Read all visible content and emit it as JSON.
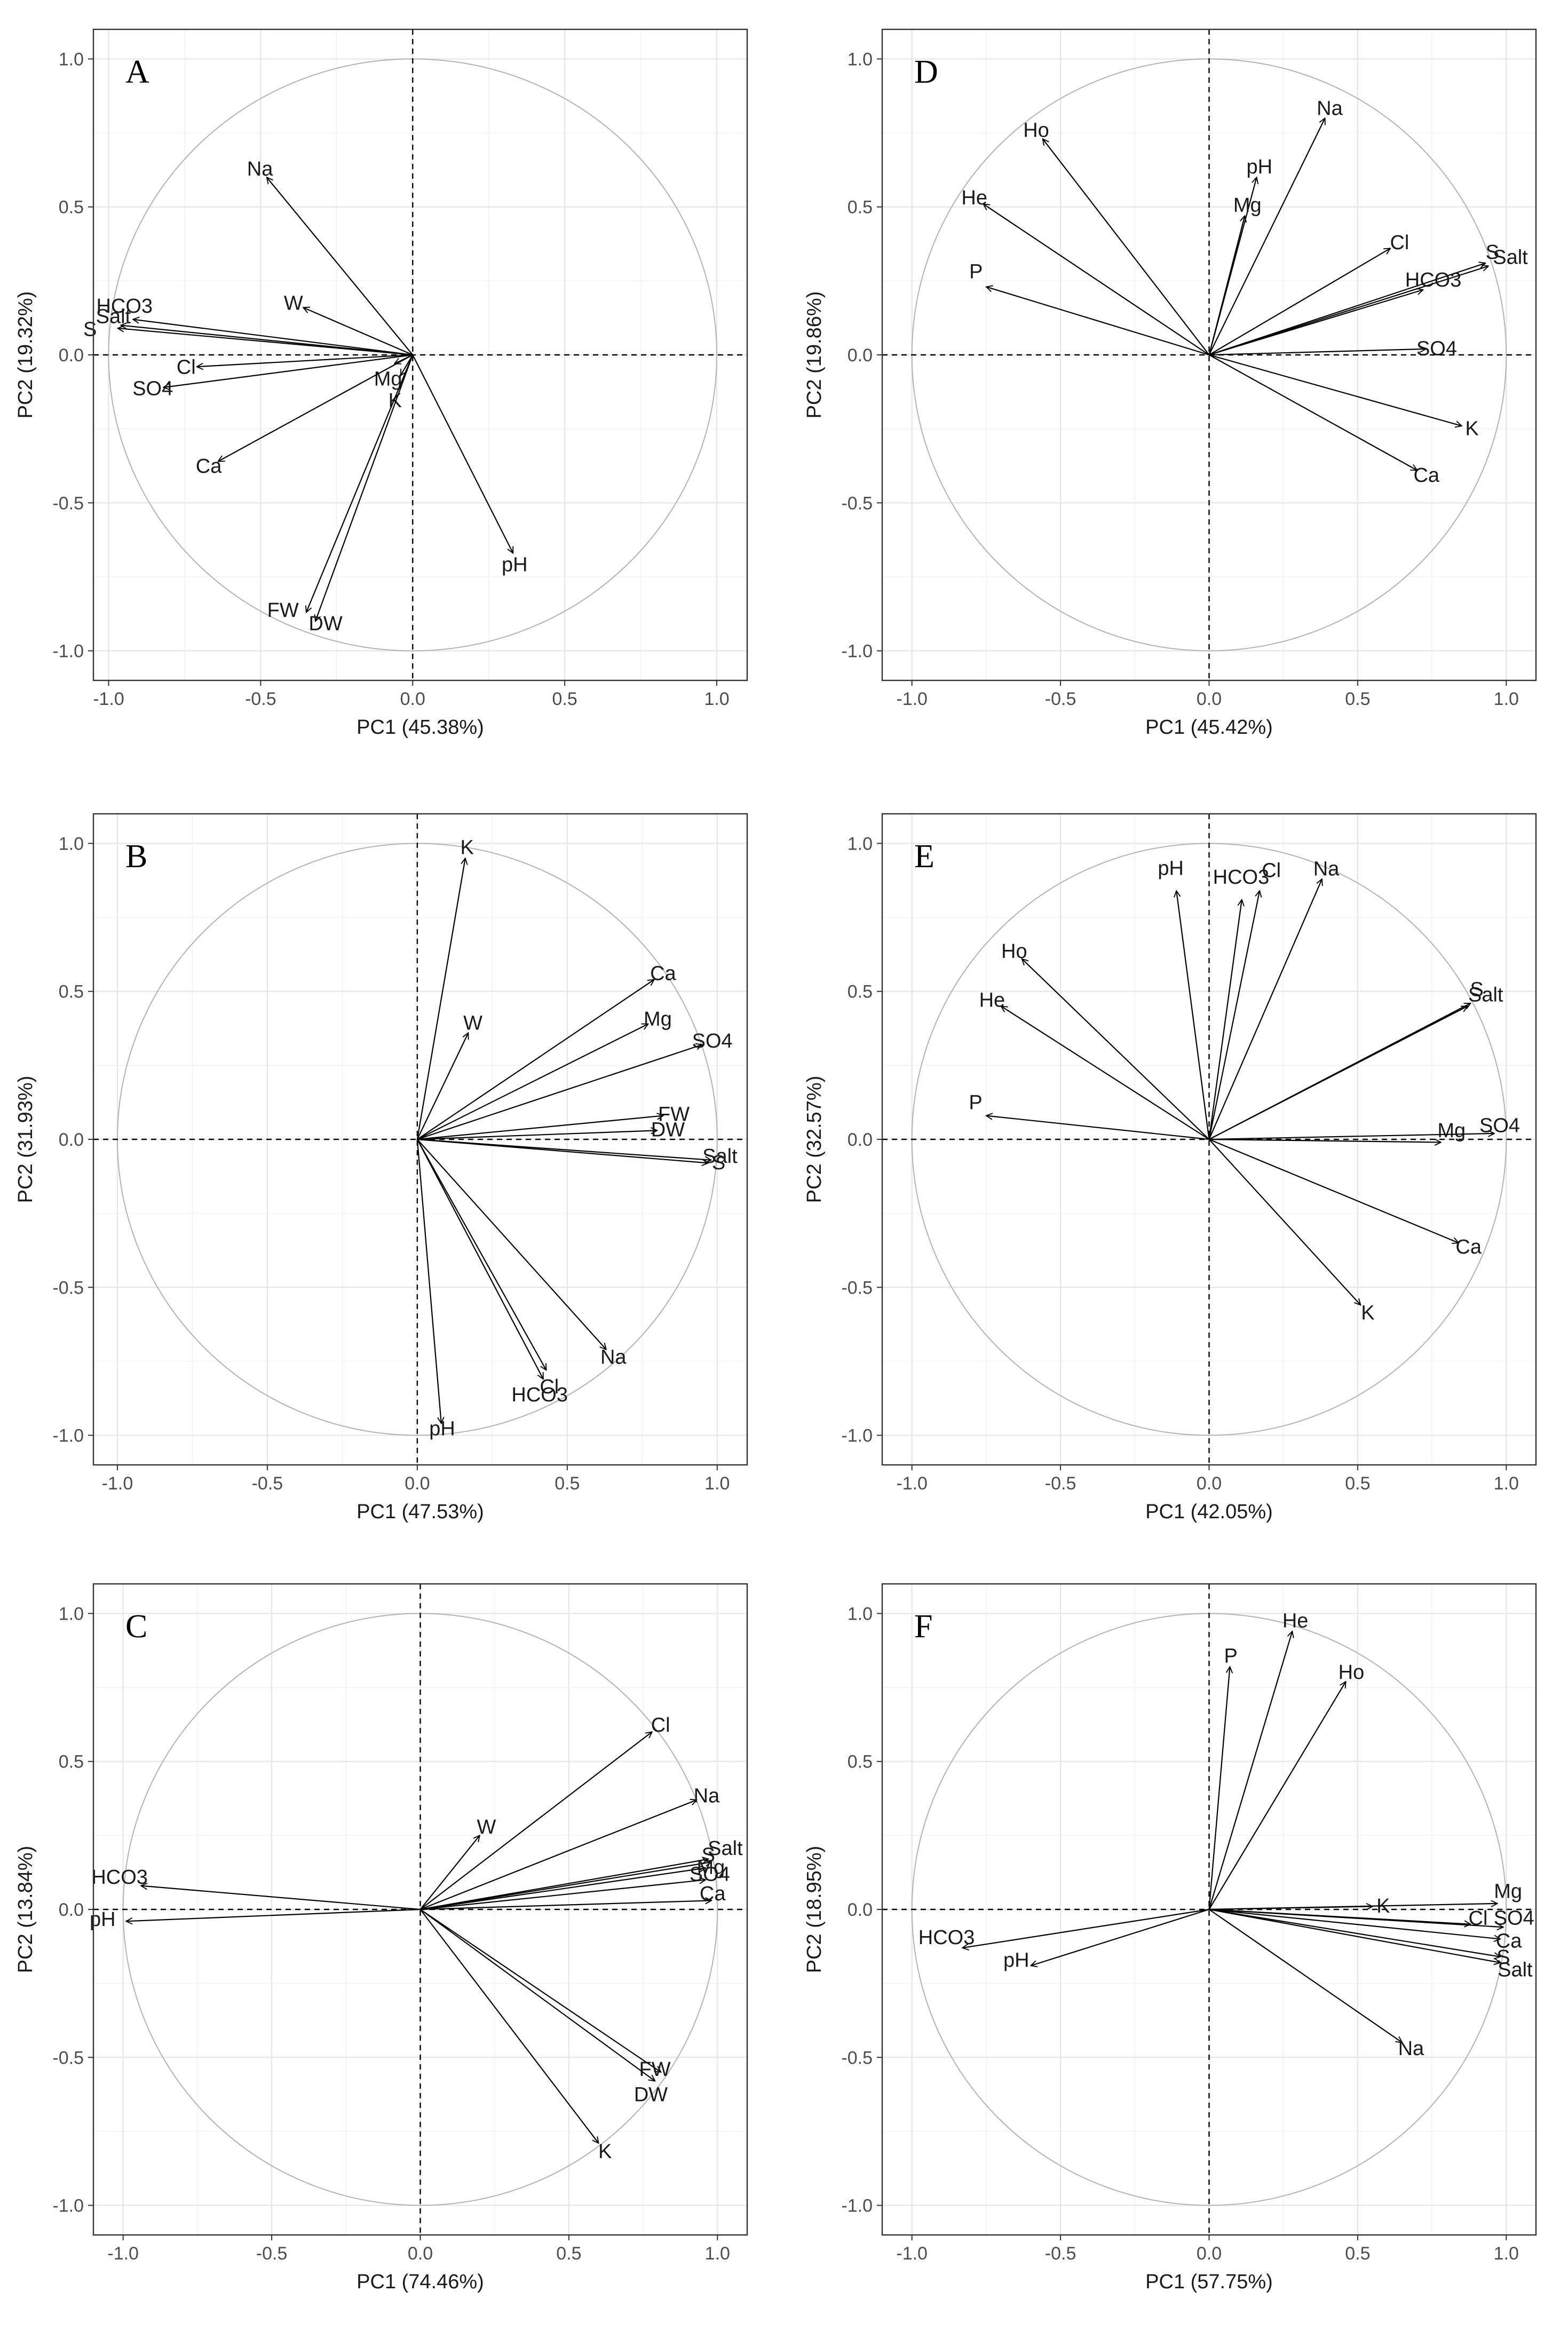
{
  "figure": {
    "colors": {
      "grid_major": "#e6e6e6",
      "grid_minor": "#f2f2f2",
      "frame": "#333333",
      "circle": "#b3b3b3",
      "arrow": "#000000"
    }
  },
  "chart_data": [
    {
      "type": "biplot",
      "panel": "A",
      "xlabel": "PC1 (45.38%)",
      "ylabel": "PC2 (19.32%)",
      "xlim": [
        -1.05,
        1.1
      ],
      "ylim": [
        -1.1,
        1.1
      ],
      "xticks": [
        -1.0,
        -0.5,
        0.0,
        0.5,
        1.0
      ],
      "xtick_labels": [
        "-1.0",
        "-0.5",
        "0.0",
        "0.5",
        "1.0"
      ],
      "yticks": [
        -1.0,
        -0.5,
        0.0,
        0.5,
        1.0
      ],
      "ytick_labels": [
        "-1.0",
        "-0.5",
        "0.0",
        "0.5",
        "1.0"
      ],
      "vectors": [
        {
          "name": "Na",
          "x": -0.48,
          "y": 0.6
        },
        {
          "name": "W",
          "x": -0.36,
          "y": 0.16
        },
        {
          "name": "HCO3",
          "x": -0.92,
          "y": 0.12
        },
        {
          "name": "Salt",
          "x": -0.96,
          "y": 0.1
        },
        {
          "name": "S",
          "x": -0.97,
          "y": 0.09
        },
        {
          "name": "Cl",
          "x": -0.71,
          "y": -0.04
        },
        {
          "name": "SO4",
          "x": -0.82,
          "y": -0.11
        },
        {
          "name": "Mg",
          "x": -0.06,
          "y": -0.03
        },
        {
          "name": "K",
          "x": -0.04,
          "y": -0.07
        },
        {
          "name": "Ca",
          "x": -0.64,
          "y": -0.36
        },
        {
          "name": "FW",
          "x": -0.35,
          "y": -0.87
        },
        {
          "name": "DW",
          "x": -0.32,
          "y": -0.9
        },
        {
          "name": "pH",
          "x": 0.33,
          "y": -0.67
        }
      ]
    },
    {
      "type": "biplot",
      "panel": "D",
      "xlabel": "PC1 (45.42%)",
      "ylabel": "PC2 (19.86%)",
      "xlim": [
        -1.1,
        1.1
      ],
      "ylim": [
        -1.1,
        1.1
      ],
      "xticks": [
        -1.0,
        -0.5,
        0.0,
        0.5,
        1.0
      ],
      "xtick_labels": [
        "-1.0",
        "-0.5",
        "0.0",
        "0.5",
        "1.0"
      ],
      "yticks": [
        -1.0,
        -0.5,
        0.0,
        0.5,
        1.0
      ],
      "ytick_labels": [
        "-1.0",
        "-0.5",
        "0.0",
        "0.5",
        "1.0"
      ],
      "vectors": [
        {
          "name": "Ho",
          "x": -0.56,
          "y": 0.73
        },
        {
          "name": "Na",
          "x": 0.39,
          "y": 0.8
        },
        {
          "name": "pH",
          "x": 0.16,
          "y": 0.6
        },
        {
          "name": "Mg",
          "x": 0.12,
          "y": 0.47
        },
        {
          "name": "He",
          "x": -0.76,
          "y": 0.51
        },
        {
          "name": "Cl",
          "x": 0.61,
          "y": 0.36
        },
        {
          "name": "S",
          "x": 0.93,
          "y": 0.31
        },
        {
          "name": "Salt",
          "x": 0.94,
          "y": 0.3
        },
        {
          "name": "HCO3",
          "x": 0.72,
          "y": 0.22
        },
        {
          "name": "P",
          "x": -0.75,
          "y": 0.23
        },
        {
          "name": "SO4",
          "x": 0.73,
          "y": 0.02
        },
        {
          "name": "K",
          "x": 0.85,
          "y": -0.24
        },
        {
          "name": "Ca",
          "x": 0.7,
          "y": -0.39
        }
      ]
    },
    {
      "type": "biplot",
      "panel": "B",
      "xlabel": "PC1 (47.53%)",
      "ylabel": "PC2 (31.93%)",
      "xlim": [
        -1.08,
        1.1
      ],
      "ylim": [
        -1.1,
        1.1
      ],
      "xticks": [
        -1.0,
        -0.5,
        0.0,
        0.5,
        1.0
      ],
      "xtick_labels": [
        "-1.0",
        "-0.5",
        "0.0",
        "0.5",
        "1.0"
      ],
      "yticks": [
        -1.0,
        -0.5,
        0.0,
        0.5,
        1.0
      ],
      "ytick_labels": [
        "-1.0",
        "-0.5",
        "0.0",
        "0.5",
        "1.0"
      ],
      "vectors": [
        {
          "name": "K",
          "x": 0.16,
          "y": 0.95
        },
        {
          "name": "Ca",
          "x": 0.79,
          "y": 0.54
        },
        {
          "name": "W",
          "x": 0.17,
          "y": 0.36
        },
        {
          "name": "Mg",
          "x": 0.77,
          "y": 0.39
        },
        {
          "name": "SO4",
          "x": 0.95,
          "y": 0.32
        },
        {
          "name": "FW",
          "x": 0.82,
          "y": 0.08
        },
        {
          "name": "DW",
          "x": 0.8,
          "y": 0.03
        },
        {
          "name": "S",
          "x": 0.98,
          "y": -0.07
        },
        {
          "name": "Salt",
          "x": 0.97,
          "y": -0.08
        },
        {
          "name": "Na",
          "x": 0.63,
          "y": -0.71
        },
        {
          "name": "Cl",
          "x": 0.43,
          "y": -0.78
        },
        {
          "name": "HCO3",
          "x": 0.42,
          "y": -0.81
        },
        {
          "name": "pH",
          "x": 0.08,
          "y": -0.96
        }
      ]
    },
    {
      "type": "biplot",
      "panel": "E",
      "xlabel": "PC1 (42.05%)",
      "ylabel": "PC2 (32.57%)",
      "xlim": [
        -1.1,
        1.1
      ],
      "ylim": [
        -1.1,
        1.1
      ],
      "xticks": [
        -1.0,
        -0.5,
        0.0,
        0.5,
        1.0
      ],
      "xtick_labels": [
        "-1.0",
        "-0.5",
        "0.0",
        "0.5",
        "1.0"
      ],
      "yticks": [
        -1.0,
        -0.5,
        0.0,
        0.5,
        1.0
      ],
      "ytick_labels": [
        "-1.0",
        "-0.5",
        "0.0",
        "0.5",
        "1.0"
      ],
      "vectors": [
        {
          "name": "pH",
          "x": -0.11,
          "y": 0.84
        },
        {
          "name": "HCO3",
          "x": 0.11,
          "y": 0.81
        },
        {
          "name": "Cl",
          "x": 0.17,
          "y": 0.84
        },
        {
          "name": "Na",
          "x": 0.38,
          "y": 0.88
        },
        {
          "name": "Ho",
          "x": -0.63,
          "y": 0.61
        },
        {
          "name": "He",
          "x": -0.7,
          "y": 0.45
        },
        {
          "name": "S",
          "x": 0.88,
          "y": 0.46
        },
        {
          "name": "Salt",
          "x": 0.87,
          "y": 0.45
        },
        {
          "name": "P",
          "x": -0.75,
          "y": 0.08
        },
        {
          "name": "Mg",
          "x": 0.78,
          "y": -0.01
        },
        {
          "name": "SO4",
          "x": 0.96,
          "y": 0.02
        },
        {
          "name": "Ca",
          "x": 0.84,
          "y": -0.35
        },
        {
          "name": "K",
          "x": 0.51,
          "y": -0.56
        }
      ]
    },
    {
      "type": "biplot",
      "panel": "C",
      "xlabel": "PC1 (74.46%)",
      "ylabel": "PC2 (13.84%)",
      "xlim": [
        -1.1,
        1.1
      ],
      "ylim": [
        -1.1,
        1.1
      ],
      "xticks": [
        -1.0,
        -0.5,
        0.0,
        0.5,
        1.0
      ],
      "xtick_labels": [
        "-1.0",
        "-0.5",
        "0.0",
        "0.5",
        "1.0"
      ],
      "yticks": [
        -1.0,
        -0.5,
        0.0,
        0.5,
        1.0
      ],
      "ytick_labels": [
        "-1.0",
        "-0.5",
        "0.0",
        "0.5",
        "1.0"
      ],
      "vectors": [
        {
          "name": "Cl",
          "x": 0.78,
          "y": 0.6
        },
        {
          "name": "Na",
          "x": 0.93,
          "y": 0.37
        },
        {
          "name": "W",
          "x": 0.2,
          "y": 0.25
        },
        {
          "name": "S",
          "x": 0.97,
          "y": 0.17
        },
        {
          "name": "Salt",
          "x": 0.98,
          "y": 0.16
        },
        {
          "name": "Mg",
          "x": 0.96,
          "y": 0.14
        },
        {
          "name": "SO4",
          "x": 0.96,
          "y": 0.1
        },
        {
          "name": "Ca",
          "x": 0.98,
          "y": 0.03
        },
        {
          "name": "HCO3",
          "x": -0.94,
          "y": 0.08
        },
        {
          "name": "pH",
          "x": -0.99,
          "y": -0.04
        },
        {
          "name": "FW",
          "x": 0.81,
          "y": -0.55
        },
        {
          "name": "DW",
          "x": 0.79,
          "y": -0.58
        },
        {
          "name": "K",
          "x": 0.6,
          "y": -0.79
        }
      ]
    },
    {
      "type": "biplot",
      "panel": "F",
      "xlabel": "PC1 (57.75%)",
      "ylabel": "PC2 (18.95%)",
      "xlim": [
        -1.1,
        1.1
      ],
      "ylim": [
        -1.1,
        1.1
      ],
      "xticks": [
        -1.0,
        -0.5,
        0.0,
        0.5,
        1.0
      ],
      "xtick_labels": [
        "-1.0",
        "-0.5",
        "0.0",
        "0.5",
        "1.0"
      ],
      "yticks": [
        -1.0,
        -0.5,
        0.0,
        0.5,
        1.0
      ],
      "ytick_labels": [
        "-1.0",
        "-0.5",
        "0.0",
        "0.5",
        "1.0"
      ],
      "vectors": [
        {
          "name": "He",
          "x": 0.28,
          "y": 0.94
        },
        {
          "name": "P",
          "x": 0.07,
          "y": 0.82
        },
        {
          "name": "Ho",
          "x": 0.46,
          "y": 0.77
        },
        {
          "name": "K",
          "x": 0.55,
          "y": 0.01
        },
        {
          "name": "Mg",
          "x": 0.97,
          "y": 0.02
        },
        {
          "name": "Cl",
          "x": 0.88,
          "y": -0.05
        },
        {
          "name": "SO4",
          "x": 0.99,
          "y": -0.06
        },
        {
          "name": "Ca",
          "x": 0.98,
          "y": -0.1
        },
        {
          "name": "S",
          "x": 0.98,
          "y": -0.16
        },
        {
          "name": "Salt",
          "x": 0.98,
          "y": -0.18
        },
        {
          "name": "HCO3",
          "x": -0.83,
          "y": -0.13
        },
        {
          "name": "pH",
          "x": -0.6,
          "y": -0.19
        },
        {
          "name": "Na",
          "x": 0.65,
          "y": -0.45
        }
      ]
    }
  ]
}
